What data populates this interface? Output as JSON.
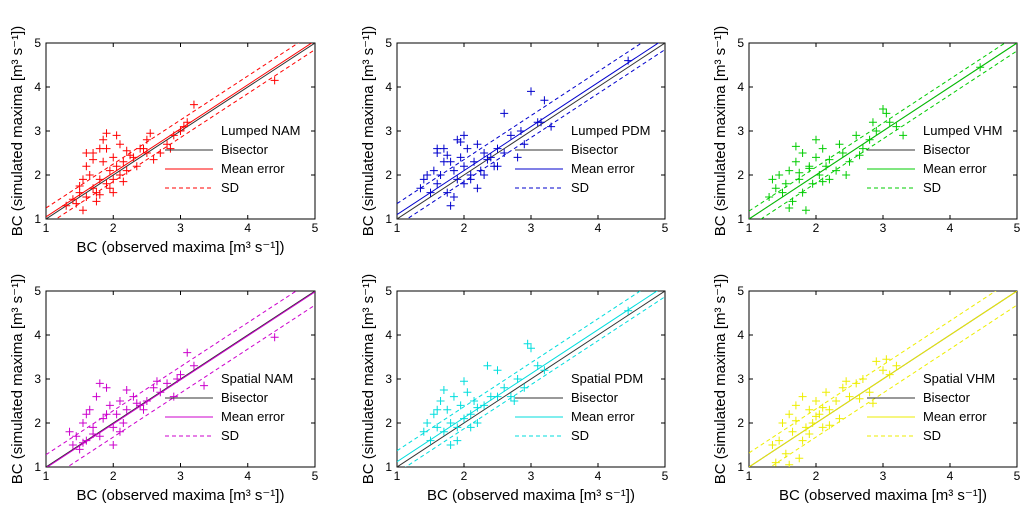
{
  "chart_data": [
    {
      "type": "scatter",
      "title": "",
      "xlabel": "BC (observed maxima [m³ s⁻¹])",
      "ylabel": "BC (simulated maxima [m³ s⁻¹])",
      "xlim": [
        1,
        5
      ],
      "ylim": [
        1,
        5
      ],
      "xticks": [
        "1",
        "2",
        "3",
        "4",
        "5"
      ],
      "yticks": [
        "1",
        "2",
        "3",
        "4",
        "5"
      ],
      "grid": false,
      "legend_position": "bottom-right",
      "color": "#ff0000",
      "legend": [
        "Lumped NAM",
        "Bisector",
        "Mean error",
        "SD"
      ],
      "mean_error_offset": 0.05,
      "sd_offset": 0.2,
      "points_x": [
        1.3,
        1.4,
        1.45,
        1.5,
        1.5,
        1.55,
        1.6,
        1.6,
        1.65,
        1.7,
        1.7,
        1.75,
        1.8,
        1.8,
        1.85,
        1.9,
        1.9,
        1.95,
        2.0,
        2.0,
        2.05,
        2.1,
        2.1,
        2.15,
        2.2,
        2.2,
        2.3,
        2.35,
        2.4,
        2.5,
        2.5,
        2.6,
        2.7,
        2.8,
        2.9,
        3.0,
        3.1,
        3.2,
        1.75,
        1.85,
        1.95,
        2.05,
        1.6,
        1.9,
        2.25,
        2.45,
        2.55,
        2.85,
        3.05,
        4.4,
        1.7,
        1.8,
        2.0,
        2.15,
        1.55
      ],
      "points_y": [
        1.3,
        1.45,
        1.35,
        1.6,
        1.75,
        1.9,
        1.5,
        2.2,
        2.0,
        1.7,
        2.5,
        1.6,
        1.9,
        2.6,
        2.3,
        1.8,
        2.6,
        2.1,
        1.9,
        2.4,
        2.2,
        2.0,
        2.7,
        2.3,
        2.1,
        2.55,
        2.4,
        2.2,
        2.6,
        2.5,
        2.8,
        2.35,
        2.5,
        2.7,
        2.9,
        3.0,
        3.2,
        3.6,
        1.4,
        2.8,
        1.7,
        2.9,
        2.5,
        2.95,
        2.45,
        2.6,
        2.95,
        2.6,
        3.1,
        4.15,
        2.35,
        1.55,
        1.6,
        1.85,
        1.2
      ]
    },
    {
      "type": "scatter",
      "title": "",
      "xlabel": "",
      "ylabel": "BC (simulated maxima [m³ s⁻¹])",
      "xlim": [
        1,
        5
      ],
      "ylim": [
        1,
        5
      ],
      "xticks": [
        "1",
        "2",
        "3",
        "4",
        "5"
      ],
      "yticks": [
        "1",
        "2",
        "3",
        "4",
        "5"
      ],
      "grid": false,
      "legend_position": "bottom-right",
      "color": "#0000cc",
      "legend": [
        "Lumped PDM",
        "Bisector",
        "Mean error",
        "SD"
      ],
      "mean_error_offset": 0.1,
      "sd_offset": 0.25,
      "points_x": [
        1.35,
        1.4,
        1.45,
        1.5,
        1.55,
        1.6,
        1.6,
        1.65,
        1.7,
        1.75,
        1.8,
        1.8,
        1.85,
        1.9,
        1.95,
        2.0,
        2.0,
        2.05,
        2.1,
        2.15,
        2.2,
        2.25,
        2.3,
        2.4,
        2.45,
        2.5,
        2.6,
        2.7,
        2.8,
        2.9,
        3.0,
        3.1,
        3.2,
        3.3,
        1.6,
        1.7,
        1.9,
        2.1,
        2.3,
        2.6,
        2.85,
        3.15,
        4.45,
        1.85,
        2.0,
        2.2,
        2.5,
        1.75,
        1.95,
        2.35
      ],
      "points_y": [
        1.7,
        1.9,
        2.0,
        1.6,
        2.1,
        1.8,
        2.5,
        2.0,
        2.6,
        1.6,
        2.3,
        1.3,
        2.1,
        1.9,
        2.4,
        2.2,
        1.8,
        2.6,
        2.0,
        2.3,
        2.7,
        2.1,
        2.5,
        2.4,
        2.2,
        2.6,
        3.4,
        2.9,
        2.4,
        2.7,
        3.9,
        3.2,
        3.7,
        3.1,
        2.6,
        2.3,
        2.8,
        1.9,
        2.0,
        2.5,
        3.0,
        3.2,
        4.6,
        1.5,
        2.9,
        1.7,
        2.2,
        2.45,
        2.75,
        2.35
      ]
    },
    {
      "type": "scatter",
      "title": "",
      "xlabel": "",
      "ylabel": "BC (simulated maxima [m³ s⁻¹])",
      "xlim": [
        1,
        5
      ],
      "ylim": [
        1,
        5
      ],
      "xticks": [
        "1",
        "2",
        "3",
        "4",
        "5"
      ],
      "yticks": [
        "1",
        "2",
        "3",
        "4",
        "5"
      ],
      "grid": false,
      "legend_position": "bottom-right",
      "color": "#00cc00",
      "legend": [
        "Lumped VHM",
        "Bisector",
        "Mean error",
        "SD"
      ],
      "mean_error_offset": 0.0,
      "sd_offset": 0.18,
      "points_x": [
        1.3,
        1.35,
        1.4,
        1.45,
        1.5,
        1.55,
        1.6,
        1.65,
        1.7,
        1.75,
        1.8,
        1.85,
        1.9,
        1.95,
        2.0,
        2.05,
        2.1,
        2.15,
        2.2,
        2.3,
        2.4,
        2.5,
        2.6,
        2.7,
        2.8,
        2.9,
        3.0,
        3.1,
        3.2,
        3.3,
        1.7,
        1.8,
        2.0,
        2.2,
        2.45,
        2.65,
        2.85,
        3.05,
        4.45,
        1.6,
        1.9,
        2.1,
        1.75,
        2.35
      ],
      "points_y": [
        1.5,
        1.9,
        1.7,
        2.0,
        1.6,
        1.8,
        2.1,
        1.4,
        2.3,
        1.9,
        2.5,
        1.2,
        2.2,
        1.8,
        2.4,
        2.0,
        2.6,
        2.2,
        1.9,
        2.1,
        2.5,
        2.3,
        2.9,
        2.6,
        2.8,
        3.0,
        3.5,
        3.2,
        3.1,
        2.9,
        2.65,
        1.6,
        2.8,
        2.35,
        2.0,
        2.45,
        3.2,
        3.4,
        4.45,
        1.25,
        2.15,
        1.85,
        2.05,
        2.7
      ]
    },
    {
      "type": "scatter",
      "title": "",
      "xlabel": "BC (observed maxima [m³ s⁻¹])",
      "ylabel": "BC (simulated maxima [m³ s⁻¹])",
      "xlim": [
        1,
        5
      ],
      "ylim": [
        1,
        5
      ],
      "xticks": [
        "1",
        "2",
        "3",
        "4",
        "5"
      ],
      "yticks": [
        "1",
        "2",
        "3",
        "4",
        "5"
      ],
      "grid": false,
      "legend_position": "bottom-right",
      "color": "#cc00cc",
      "legend": [
        "Spatial NAM",
        "Bisector",
        "Mean error",
        "SD"
      ],
      "mean_error_offset": -0.02,
      "sd_offset": 0.3,
      "points_x": [
        1.35,
        1.4,
        1.45,
        1.5,
        1.55,
        1.6,
        1.65,
        1.7,
        1.75,
        1.8,
        1.85,
        1.9,
        1.95,
        2.0,
        2.05,
        2.1,
        2.15,
        2.2,
        2.3,
        2.4,
        2.5,
        2.6,
        2.7,
        2.8,
        2.9,
        3.0,
        3.1,
        3.2,
        3.35,
        1.6,
        1.8,
        2.0,
        2.2,
        2.45,
        2.65,
        2.95,
        4.4,
        1.7,
        1.9,
        2.1,
        1.55,
        2.35
      ],
      "points_y": [
        1.8,
        1.5,
        1.7,
        1.4,
        2.0,
        1.6,
        2.3,
        1.9,
        2.6,
        1.7,
        2.1,
        2.8,
        2.4,
        1.9,
        2.2,
        2.5,
        2.0,
        2.3,
        2.6,
        2.4,
        2.5,
        2.8,
        2.7,
        2.9,
        2.6,
        3.1,
        3.6,
        3.3,
        2.85,
        2.2,
        2.9,
        1.5,
        2.75,
        2.3,
        2.95,
        3.0,
        3.95,
        1.75,
        2.2,
        1.8,
        1.55,
        2.45
      ]
    },
    {
      "type": "scatter",
      "title": "",
      "xlabel": "BC (observed maxima [m³ s⁻¹])",
      "ylabel": "BC (simulated maxima [m³ s⁻¹])",
      "xlim": [
        1,
        5
      ],
      "ylim": [
        1,
        5
      ],
      "xticks": [
        "1",
        "2",
        "3",
        "4",
        "5"
      ],
      "yticks": [
        "1",
        "2",
        "3",
        "4",
        "5"
      ],
      "grid": false,
      "legend_position": "bottom-right",
      "color": "#00dddd",
      "legend": [
        "Spatial PDM",
        "Bisector",
        "Mean error",
        "SD"
      ],
      "mean_error_offset": 0.12,
      "sd_offset": 0.25,
      "points_x": [
        1.4,
        1.45,
        1.5,
        1.55,
        1.6,
        1.65,
        1.7,
        1.75,
        1.8,
        1.85,
        1.9,
        1.95,
        2.0,
        2.05,
        2.1,
        2.15,
        2.2,
        2.3,
        2.4,
        2.5,
        2.6,
        2.7,
        2.8,
        2.9,
        3.0,
        3.1,
        3.2,
        1.6,
        1.8,
        2.0,
        2.2,
        2.5,
        2.75,
        2.95,
        4.45,
        1.7,
        1.9,
        2.1,
        2.35
      ],
      "points_y": [
        1.8,
        2.0,
        1.6,
        2.2,
        1.9,
        2.5,
        1.8,
        2.3,
        2.0,
        2.6,
        1.9,
        2.4,
        2.1,
        2.7,
        2.2,
        2.5,
        2.0,
        2.4,
        2.6,
        3.2,
        2.8,
        2.6,
        3.0,
        2.8,
        3.7,
        3.3,
        3.2,
        2.3,
        1.5,
        2.95,
        2.35,
        2.6,
        2.5,
        3.8,
        4.55,
        2.75,
        1.6,
        1.9,
        3.3
      ]
    },
    {
      "type": "scatter",
      "title": "",
      "xlabel": "BC (observed maxima [m³ s⁻¹])",
      "ylabel": "BC (simulated maxima [m³ s⁻¹])",
      "xlim": [
        1,
        5
      ],
      "ylim": [
        1,
        5
      ],
      "xticks": [
        "1",
        "2",
        "3",
        "4",
        "5"
      ],
      "yticks": [
        "1",
        "2",
        "3",
        "4",
        "5"
      ],
      "grid": false,
      "legend_position": "bottom-right",
      "color": "#eeee00",
      "legend": [
        "Spatial VHM",
        "Bisector",
        "Mean error",
        "SD"
      ],
      "mean_error_offset": 0.0,
      "sd_offset": 0.32,
      "points_x": [
        1.35,
        1.4,
        1.45,
        1.5,
        1.55,
        1.6,
        1.65,
        1.7,
        1.75,
        1.8,
        1.85,
        1.9,
        1.95,
        2.0,
        2.05,
        2.1,
        2.15,
        2.2,
        2.3,
        2.4,
        2.5,
        2.6,
        2.7,
        2.8,
        2.9,
        3.0,
        3.1,
        3.2,
        1.6,
        1.8,
        2.0,
        2.2,
        2.45,
        2.65,
        2.85,
        3.05,
        1.7,
        1.9,
        2.1,
        2.35
      ],
      "points_y": [
        1.5,
        1.1,
        1.6,
        2.0,
        1.3,
        2.2,
        1.8,
        2.4,
        1.2,
        2.6,
        1.9,
        2.3,
        2.0,
        2.5,
        2.2,
        1.9,
        2.7,
        2.3,
        2.5,
        2.8,
        2.6,
        2.9,
        3.0,
        2.7,
        3.4,
        3.2,
        3.1,
        3.3,
        1.05,
        1.6,
        2.15,
        1.95,
        2.95,
        2.55,
        2.45,
        3.45,
        2.05,
        1.75,
        2.35,
        2.1
      ]
    }
  ]
}
